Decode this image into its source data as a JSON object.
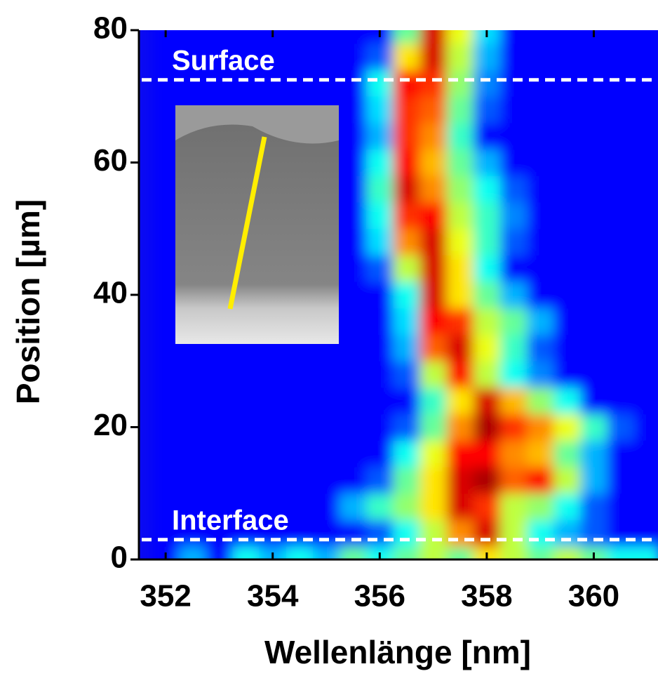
{
  "chart_data": {
    "type": "heatmap",
    "colormap": "jet",
    "xlabel": "Wellenlänge [nm]",
    "ylabel": "Position [µm]",
    "xlim": [
      351.5,
      361.2
    ],
    "ylim": [
      0,
      80
    ],
    "xticks": [
      352,
      354,
      356,
      358,
      360
    ],
    "yticks": [
      0,
      20,
      40,
      60,
      80
    ],
    "x": [
      352,
      352.5,
      353,
      353.5,
      354,
      354.5,
      355,
      355.5,
      356,
      356.5,
      357,
      357.5,
      358,
      358.5,
      359,
      359.5,
      360,
      360.5,
      361
    ],
    "y": [
      0,
      4,
      8,
      12,
      16,
      20,
      24,
      28,
      32,
      36,
      40,
      44,
      48,
      52,
      56,
      60,
      64,
      68,
      72,
      76,
      80
    ],
    "z": [
      [
        0,
        0.2,
        0,
        0.3,
        0.2,
        0.3,
        0.2,
        0.4,
        0.3,
        0.4,
        0.5,
        0.4,
        0.6,
        0.5,
        0.4,
        0.5,
        0.4,
        0.3,
        0.3
      ],
      [
        0,
        0,
        0,
        0,
        0,
        0,
        0,
        0,
        0.1,
        0.3,
        0.5,
        0.7,
        0.9,
        0.5,
        0.3,
        0.2,
        0.1,
        0,
        0
      ],
      [
        0,
        0,
        0,
        0,
        0,
        0,
        0,
        0.2,
        0.35,
        0.45,
        0.6,
        0.9,
        0.8,
        0.5,
        0.45,
        0.3,
        0.1,
        0,
        0
      ],
      [
        0,
        0,
        0,
        0,
        0,
        0,
        0,
        0,
        0.1,
        0.4,
        0.6,
        0.9,
        0.95,
        0.75,
        0.85,
        0.5,
        0.2,
        0,
        0
      ],
      [
        0,
        0,
        0,
        0,
        0,
        0,
        0,
        0,
        0,
        0.3,
        0.55,
        0.85,
        0.85,
        0.7,
        0.65,
        0.4,
        0.2,
        0,
        0
      ],
      [
        0,
        0,
        0,
        0,
        0,
        0,
        0,
        0,
        0,
        0.1,
        0.4,
        0.7,
        0.95,
        0.8,
        0.7,
        0.55,
        0.35,
        0.1,
        0
      ],
      [
        0,
        0,
        0,
        0,
        0,
        0,
        0,
        0,
        0,
        0,
        0.35,
        0.6,
        0.9,
        0.65,
        0.45,
        0.3,
        0,
        0,
        0
      ],
      [
        0,
        0,
        0,
        0,
        0,
        0,
        0,
        0,
        0,
        0.1,
        0.5,
        0.85,
        0.5,
        0.3,
        0.15,
        0,
        0,
        0,
        0
      ],
      [
        0,
        0,
        0,
        0,
        0,
        0,
        0,
        0,
        0,
        0.2,
        0.75,
        0.9,
        0.55,
        0.35,
        0.1,
        0,
        0,
        0,
        0
      ],
      [
        0,
        0,
        0,
        0,
        0,
        0,
        0,
        0,
        0,
        0.25,
        0.85,
        0.8,
        0.5,
        0.4,
        0.2,
        0,
        0,
        0,
        0
      ],
      [
        0,
        0,
        0,
        0,
        0,
        0,
        0,
        0,
        0,
        0.3,
        0.9,
        0.6,
        0.4,
        0.2,
        0,
        0,
        0,
        0,
        0
      ],
      [
        0,
        0,
        0,
        0,
        0,
        0,
        0,
        0,
        0.1,
        0.5,
        0.9,
        0.6,
        0.3,
        0,
        0,
        0,
        0,
        0,
        0
      ],
      [
        0,
        0,
        0,
        0,
        0,
        0,
        0,
        0,
        0.25,
        0.7,
        0.9,
        0.55,
        0.35,
        0.1,
        0,
        0,
        0,
        0,
        0
      ],
      [
        0,
        0,
        0,
        0,
        0,
        0,
        0,
        0,
        0.3,
        0.8,
        0.85,
        0.5,
        0.35,
        0.15,
        0,
        0,
        0,
        0,
        0
      ],
      [
        0,
        0,
        0,
        0,
        0,
        0,
        0,
        0,
        0.35,
        0.9,
        0.7,
        0.45,
        0.3,
        0.1,
        0,
        0,
        0,
        0,
        0
      ],
      [
        0,
        0,
        0,
        0,
        0,
        0,
        0,
        0,
        0.3,
        0.85,
        0.65,
        0.4,
        0.2,
        0,
        0,
        0,
        0,
        0,
        0
      ],
      [
        0,
        0,
        0,
        0,
        0,
        0,
        0,
        0,
        0.2,
        0.8,
        0.7,
        0.35,
        0,
        0,
        0,
        0,
        0,
        0,
        0
      ],
      [
        0,
        0,
        0,
        0,
        0,
        0,
        0,
        0,
        0.25,
        0.8,
        0.75,
        0.4,
        0.1,
        0,
        0,
        0,
        0,
        0,
        0
      ],
      [
        0,
        0,
        0,
        0,
        0,
        0,
        0,
        0,
        0.3,
        0.85,
        0.8,
        0.45,
        0.15,
        0,
        0,
        0,
        0,
        0,
        0
      ],
      [
        0,
        0,
        0,
        0,
        0,
        0,
        0,
        0,
        0.1,
        0.6,
        0.9,
        0.5,
        0.2,
        0,
        0,
        0,
        0,
        0,
        0
      ],
      [
        0,
        0,
        0,
        0,
        0,
        0,
        0,
        0,
        0,
        0.4,
        0.9,
        0.55,
        0.25,
        0,
        0,
        0,
        0,
        0,
        0
      ]
    ],
    "annotations": [
      {
        "text": "Surface",
        "y": 72.5
      },
      {
        "text": "Interface",
        "y": 3
      }
    ]
  }
}
